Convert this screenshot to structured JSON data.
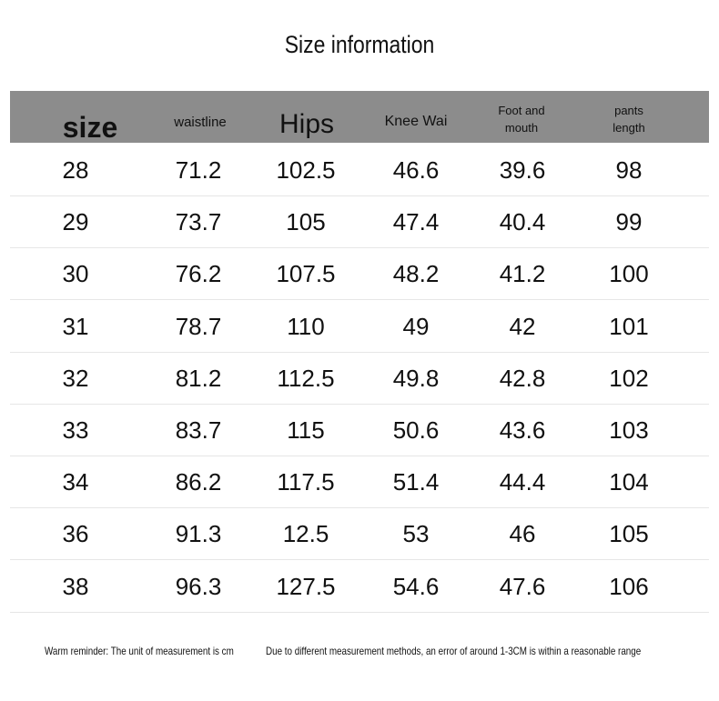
{
  "title": "Size information",
  "table": {
    "headers": [
      "size",
      "waistline",
      "Hips",
      "Knee Wai",
      "Foot and mouth",
      "pants length"
    ],
    "rows": [
      [
        "28",
        "71.2",
        "102.5",
        "46.6",
        "39.6",
        "98"
      ],
      [
        "29",
        "73.7",
        "105",
        "47.4",
        "40.4",
        "99"
      ],
      [
        "30",
        "76.2",
        "107.5",
        "48.2",
        "41.2",
        "100"
      ],
      [
        "31",
        "78.7",
        "110",
        "49",
        "42",
        "101"
      ],
      [
        "32",
        "81.2",
        "112.5",
        "49.8",
        "42.8",
        "102"
      ],
      [
        "33",
        "83.7",
        "115",
        "50.6",
        "43.6",
        "103"
      ],
      [
        "34",
        "86.2",
        "117.5",
        "51.4",
        "44.4",
        "104"
      ],
      [
        "36",
        "91.3",
        "12.5",
        "53",
        "46",
        "105"
      ],
      [
        "38",
        "96.3",
        "127.5",
        "54.6",
        "47.6",
        "106"
      ]
    ]
  },
  "notes": [
    "Warm reminder: The unit of measurement is cm",
    "Due to different measurement methods, an error of around 1-3CM is within a reasonable range"
  ]
}
